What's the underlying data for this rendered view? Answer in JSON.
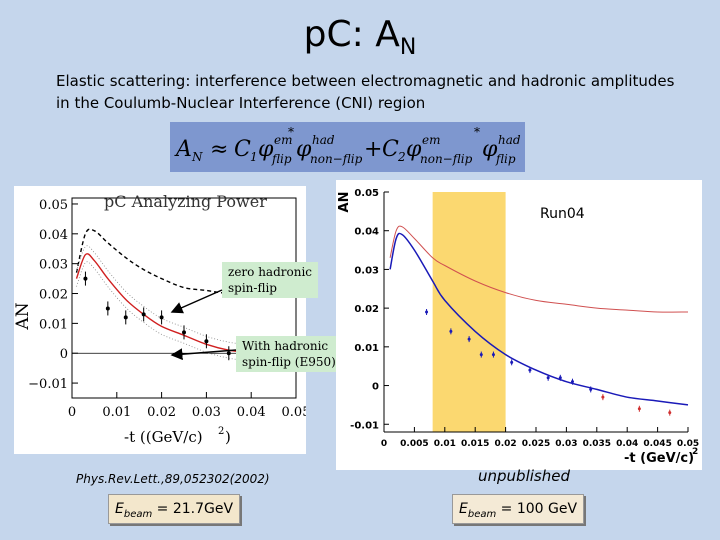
{
  "slide": {
    "title_main": "p",
    "title_rest": "C: A",
    "title_sub": "N",
    "subtitle_line1": "Elastic scattering: interference between electromagnetic and hadronic amplitudes",
    "subtitle_line2": "in the Coulumb-Nuclear Interference (CNI) region"
  },
  "formula": {
    "lhs": "A",
    "lhs_sub": "N",
    "approx": "≈",
    "c1": "C",
    "c1_sub": "1",
    "phi": "φ",
    "em": "em",
    "had": "had",
    "flip": "flip",
    "nonflip": "non−flip",
    "star": "*",
    "plus": "+",
    "c2": "C",
    "c2_sub": "2"
  },
  "left_plot": {
    "title": "pC Analyzing Power",
    "y_axis_label": "A",
    "y_axis_sub": "N",
    "x_axis_label": "-t ((GeV/c)",
    "x_axis_sup": "2",
    "x_axis_close": ")",
    "y_ticks": [
      "0.05",
      "0.04",
      "0.03",
      "0.02",
      "0.01",
      "0",
      "−0.01"
    ],
    "x_ticks": [
      "0",
      "0.01",
      "0.02",
      "0.03",
      "0.04",
      "0.05"
    ],
    "callout_1_line1": "zero hadronic",
    "callout_1_line2": "spin-flip",
    "callout_2_line1": "With hadronic",
    "callout_2_line2": "spin-flip (E950)",
    "citation": "Phys.Rev.Lett.,89,052302(2002)",
    "ebeam_label_E": "E",
    "ebeam_label_sub": "beam",
    "ebeam_value": " = 21.7GeV"
  },
  "right_plot": {
    "run_label": "Run04",
    "y_axis_label": "A",
    "y_axis_sub": "N",
    "x_axis_label": "-t (GeV/c)",
    "x_axis_sup": "2",
    "y_ticks": [
      "0.05",
      "0.04",
      "0.03",
      "0.02",
      "0.01",
      "0",
      "-0.01"
    ],
    "x_ticks": [
      "0",
      "0.005",
      "0.01",
      "0.015",
      "0.02",
      "0.025",
      "0.03",
      "0.035",
      "0.04",
      "0.045",
      "0.05"
    ],
    "citation": "unpublished",
    "ebeam_label_E": "E",
    "ebeam_label_sub": "beam",
    "ebeam_value": " = 100 GeV"
  },
  "chart_data": [
    {
      "type": "scatter",
      "title": "pC Analyzing Power",
      "xlabel": "-t ((GeV/c)2)",
      "ylabel": "AN",
      "xlim": [
        0,
        0.05
      ],
      "ylim": [
        -0.015,
        0.052
      ],
      "series": [
        {
          "name": "zero hadronic spin-flip",
          "style": "dashed",
          "color": "#000000",
          "x": [
            0.001,
            0.003,
            0.005,
            0.008,
            0.012,
            0.016,
            0.02,
            0.025,
            0.03,
            0.035,
            0.04,
            0.045,
            0.05
          ],
          "y": [
            0.027,
            0.04,
            0.041,
            0.037,
            0.032,
            0.028,
            0.025,
            0.022,
            0.021,
            0.02,
            0.02,
            0.02,
            0.02
          ]
        },
        {
          "name": "With hadronic spin-flip (E950)",
          "style": "solid",
          "color": "#d02020",
          "x": [
            0.001,
            0.003,
            0.005,
            0.008,
            0.012,
            0.016,
            0.02,
            0.025,
            0.03,
            0.035,
            0.04,
            0.045,
            0.05
          ],
          "y": [
            0.025,
            0.033,
            0.031,
            0.025,
            0.018,
            0.013,
            0.009,
            0.006,
            0.003,
            0.001,
            0.0,
            -0.002,
            -0.003
          ]
        },
        {
          "name": "data",
          "style": "points",
          "color": "#000000",
          "x": [
            0.003,
            0.008,
            0.012,
            0.016,
            0.02,
            0.025,
            0.03,
            0.035,
            0.04
          ],
          "y": [
            0.025,
            0.015,
            0.012,
            0.013,
            0.012,
            0.007,
            0.004,
            0.0,
            -0.001
          ]
        }
      ]
    },
    {
      "type": "scatter",
      "title": "Run04",
      "xlabel": "-t (GeV/c)2",
      "ylabel": "AN",
      "xlim": [
        0,
        0.05
      ],
      "ylim": [
        -0.012,
        0.05
      ],
      "highlight_band_x": [
        0.008,
        0.02
      ],
      "series": [
        {
          "name": "fit",
          "style": "solid",
          "color": "#1a1ab8",
          "x": [
            0.001,
            0.002,
            0.003,
            0.005,
            0.008,
            0.01,
            0.015,
            0.02,
            0.025,
            0.03,
            0.035,
            0.04,
            0.045,
            0.05
          ],
          "y": [
            0.03,
            0.038,
            0.039,
            0.035,
            0.027,
            0.022,
            0.014,
            0.008,
            0.004,
            0.001,
            -0.001,
            -0.003,
            -0.004,
            -0.005
          ]
        },
        {
          "name": "zero hadronic spin-flip",
          "style": "solid",
          "color": "#d05050",
          "x": [
            0.001,
            0.002,
            0.003,
            0.005,
            0.008,
            0.01,
            0.015,
            0.02,
            0.025,
            0.03,
            0.035,
            0.04,
            0.045,
            0.05
          ],
          "y": [
            0.033,
            0.04,
            0.041,
            0.038,
            0.033,
            0.031,
            0.027,
            0.024,
            0.022,
            0.021,
            0.02,
            0.0195,
            0.019,
            0.019
          ]
        },
        {
          "name": "data",
          "style": "points",
          "color": "#1a1ab8",
          "x": [
            0.007,
            0.011,
            0.014,
            0.016,
            0.018,
            0.021,
            0.024,
            0.027,
            0.029,
            0.031,
            0.034
          ],
          "y": [
            0.019,
            0.014,
            0.012,
            0.008,
            0.008,
            0.006,
            0.004,
            0.002,
            0.002,
            0.001,
            -0.001
          ]
        },
        {
          "name": "data (red)",
          "style": "points",
          "color": "#d03030",
          "x": [
            0.036,
            0.042,
            0.047
          ],
          "y": [
            -0.003,
            -0.006,
            -0.007
          ]
        }
      ]
    }
  ]
}
